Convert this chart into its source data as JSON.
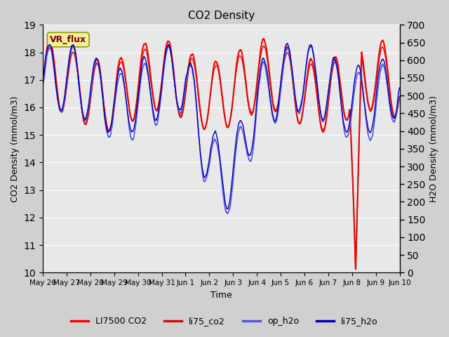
{
  "title": "CO2 Density",
  "xlabel": "Time",
  "ylabel_left": "CO2 Density (mmol/m3)",
  "ylabel_right": "H2O Density (mmol/m3)",
  "ylim_left": [
    10.0,
    19.0
  ],
  "ylim_right": [
    0,
    700
  ],
  "yticks_left": [
    10.0,
    11.0,
    12.0,
    13.0,
    14.0,
    15.0,
    16.0,
    17.0,
    18.0,
    19.0
  ],
  "yticks_right": [
    0,
    50,
    100,
    150,
    200,
    250,
    300,
    350,
    400,
    450,
    500,
    550,
    600,
    650,
    700
  ],
  "annotation_text": "VR_flux",
  "li7500_color": "#ff0000",
  "li75co2_color": "#cc1111",
  "op_h2o_color": "#5555dd",
  "li75h2o_color": "#0000bb",
  "bg_color": "#d0d0d0",
  "plot_bg_color": "#e8e8e8",
  "grid_color": "#ffffff",
  "seed": 42
}
